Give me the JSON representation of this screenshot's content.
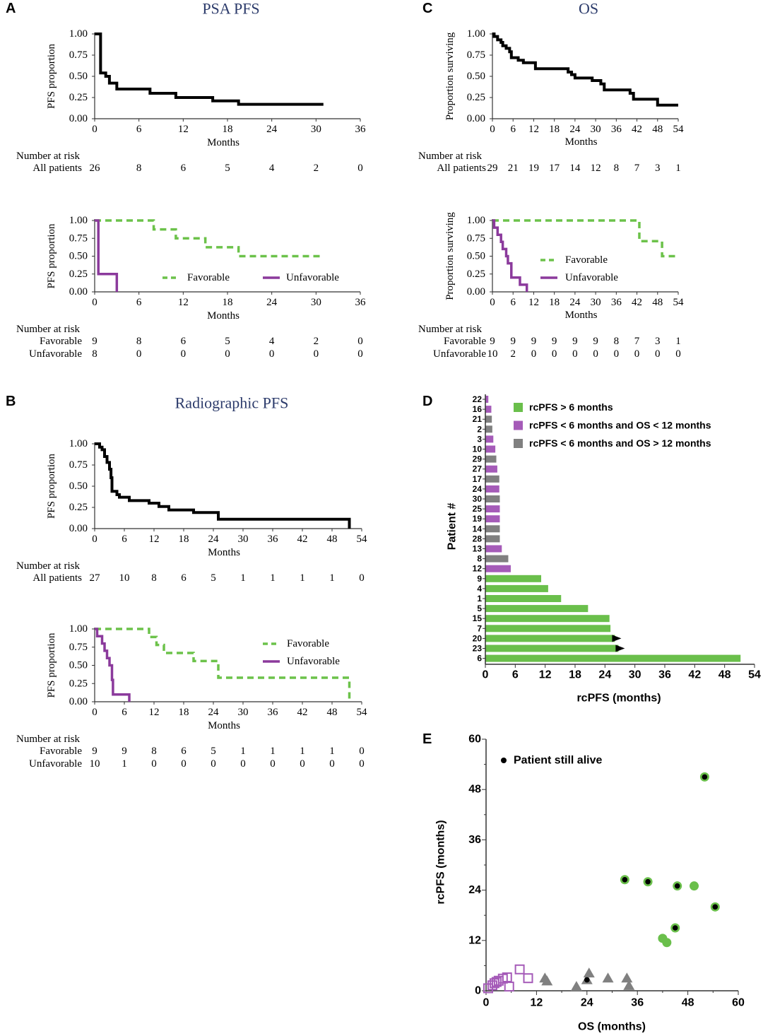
{
  "colors": {
    "black": "#000000",
    "green": "#6cc24a",
    "purple": "#8b3a9c",
    "purple_light": "#a55bb8",
    "gray": "#808080",
    "title": "#2c3b6b"
  },
  "chart_data": [
    {
      "type": "line",
      "panel": "A",
      "title": "PSA PFS",
      "xlabel": "Months",
      "ylabel": "PFS proportion",
      "xlim": [
        0,
        36
      ],
      "ylim": [
        0,
        1
      ],
      "xticks": [
        "0",
        "6",
        "12",
        "18",
        "24",
        "30",
        "36"
      ],
      "yticks": [
        "0.00",
        "0.25",
        "0.50",
        "0.75",
        "1.00"
      ],
      "legend": "none",
      "series": [
        {
          "color": "#000000",
          "style": "solid",
          "points": [
            [
              0,
              1
            ],
            [
              0.8,
              0.54
            ],
            [
              1.5,
              0.5
            ],
            [
              2,
              0.42
            ],
            [
              3,
              0.35
            ],
            [
              7.5,
              0.3
            ],
            [
              11,
              0.25
            ],
            [
              16,
              0.21
            ],
            [
              19.5,
              0.17
            ],
            [
              31,
              0.17
            ]
          ]
        }
      ],
      "risk_table": {
        "header": "Number at risk",
        "rows": [
          {
            "label": "All patients",
            "values": [
              "26",
              "8",
              "6",
              "5",
              "4",
              "2",
              "0"
            ]
          }
        ]
      }
    },
    {
      "type": "line",
      "panel": "",
      "title": "",
      "xlabel": "Months",
      "ylabel": "PFS proportion",
      "xlim": [
        0,
        36
      ],
      "ylim": [
        0,
        1
      ],
      "xticks": [
        "0",
        "6",
        "12",
        "18",
        "24",
        "30",
        "36"
      ],
      "yticks": [
        "0.00",
        "0.25",
        "0.50",
        "0.75",
        "1.00"
      ],
      "legend": "bottom-center",
      "series": [
        {
          "name": "Favorable",
          "color": "#6cc24a",
          "style": "dashed",
          "points": [
            [
              0,
              1
            ],
            [
              8,
              0.875
            ],
            [
              11,
              0.75
            ],
            [
              15,
              0.625
            ],
            [
              19.5,
              0.5
            ],
            [
              31,
              0.5
            ]
          ]
        },
        {
          "name": "Unfavorable",
          "color": "#8b3a9c",
          "style": "solid",
          "points": [
            [
              0,
              1
            ],
            [
              0.5,
              0.25
            ],
            [
              3,
              0
            ],
            [
              3,
              0
            ]
          ]
        }
      ],
      "risk_table": {
        "header": "Number at risk",
        "rows": [
          {
            "label": "Favorable",
            "values": [
              "9",
              "8",
              "6",
              "5",
              "4",
              "2",
              "0"
            ]
          },
          {
            "label": "Unfavorable",
            "values": [
              "8",
              "0",
              "0",
              "0",
              "0",
              "0",
              "0"
            ]
          }
        ]
      }
    },
    {
      "type": "line",
      "panel": "C",
      "title": "OS",
      "xlabel": "Months",
      "ylabel": "Proportion surviving",
      "xlim": [
        0,
        54
      ],
      "ylim": [
        0,
        1
      ],
      "xticks": [
        "0",
        "6",
        "12",
        "18",
        "24",
        "30",
        "36",
        "42",
        "48",
        "54"
      ],
      "yticks": [
        "0.00",
        "0.25",
        "0.50",
        "0.75",
        "1.00"
      ],
      "legend": "none",
      "series": [
        {
          "color": "#000000",
          "style": "solid",
          "points": [
            [
              0,
              1
            ],
            [
              0.5,
              0.97
            ],
            [
              1.5,
              0.93
            ],
            [
              2.5,
              0.9
            ],
            [
              3,
              0.86
            ],
            [
              4,
              0.83
            ],
            [
              5,
              0.79
            ],
            [
              5.5,
              0.72
            ],
            [
              7.5,
              0.69
            ],
            [
              9,
              0.66
            ],
            [
              12.5,
              0.59
            ],
            [
              22,
              0.55
            ],
            [
              23,
              0.52
            ],
            [
              24,
              0.48
            ],
            [
              29,
              0.45
            ],
            [
              31.5,
              0.41
            ],
            [
              32.5,
              0.34
            ],
            [
              40,
              0.3
            ],
            [
              41,
              0.23
            ],
            [
              48,
              0.16
            ],
            [
              54,
              0.16
            ]
          ]
        }
      ],
      "risk_table": {
        "header": "Number at risk",
        "rows": [
          {
            "label": "All patients",
            "values": [
              "29",
              "21",
              "19",
              "17",
              "14",
              "12",
              "8",
              "7",
              "3",
              "1"
            ]
          }
        ]
      }
    },
    {
      "type": "line",
      "panel": "",
      "title": "",
      "xlabel": "Months",
      "ylabel": "Proportion surviving",
      "xlim": [
        0,
        54
      ],
      "ylim": [
        0,
        1
      ],
      "xticks": [
        "0",
        "6",
        "12",
        "18",
        "24",
        "30",
        "36",
        "42",
        "48",
        "54"
      ],
      "yticks": [
        "0.00",
        "0.25",
        "0.50",
        "0.75",
        "1.00"
      ],
      "legend": "center-right",
      "series": [
        {
          "name": "Favorable",
          "color": "#6cc24a",
          "style": "dashed",
          "points": [
            [
              0,
              1
            ],
            [
              42.7,
              0.71
            ],
            [
              49.3,
              0.5
            ],
            [
              54,
              0.5
            ]
          ]
        },
        {
          "name": "Unfavorable",
          "color": "#8b3a9c",
          "style": "solid",
          "points": [
            [
              0,
              1
            ],
            [
              0.5,
              0.9
            ],
            [
              1.5,
              0.8
            ],
            [
              2.5,
              0.7
            ],
            [
              3,
              0.6
            ],
            [
              4,
              0.5
            ],
            [
              4.5,
              0.4
            ],
            [
              5.5,
              0.2
            ],
            [
              8,
              0.1
            ],
            [
              10,
              0
            ],
            [
              10,
              0
            ]
          ]
        }
      ],
      "risk_table": {
        "header": "Number at risk",
        "rows": [
          {
            "label": "Favorable",
            "values": [
              "9",
              "9",
              "9",
              "9",
              "9",
              "9",
              "8",
              "7",
              "3",
              "1"
            ]
          },
          {
            "label": "Unfavorable",
            "values": [
              "10",
              "2",
              "0",
              "0",
              "0",
              "0",
              "0",
              "0",
              "0",
              "0"
            ]
          }
        ]
      }
    },
    {
      "type": "line",
      "panel": "B",
      "title": "Radiographic PFS",
      "xlabel": "Months",
      "ylabel": "PFS proportion",
      "xlim": [
        0,
        54
      ],
      "ylim": [
        0,
        1
      ],
      "xticks": [
        "0",
        "6",
        "12",
        "18",
        "24",
        "30",
        "36",
        "42",
        "48",
        "54"
      ],
      "yticks": [
        "0.00",
        "0.25",
        "0.50",
        "0.75",
        "1.00"
      ],
      "legend": "none",
      "series": [
        {
          "color": "#000000",
          "style": "solid",
          "points": [
            [
              0,
              1
            ],
            [
              1,
              0.96
            ],
            [
              1.5,
              0.93
            ],
            [
              2,
              0.85
            ],
            [
              2.5,
              0.78
            ],
            [
              3,
              0.7
            ],
            [
              3.3,
              0.6
            ],
            [
              3.5,
              0.44
            ],
            [
              4.5,
              0.4
            ],
            [
              5,
              0.37
            ],
            [
              7,
              0.33
            ],
            [
              11,
              0.3
            ],
            [
              13,
              0.26
            ],
            [
              15,
              0.22
            ],
            [
              20,
              0.19
            ],
            [
              25,
              0.11
            ],
            [
              51.5,
              0
            ],
            [
              51.5,
              0
            ]
          ]
        }
      ],
      "risk_table": {
        "header": "Number at risk",
        "rows": [
          {
            "label": "All patients",
            "values": [
              "27",
              "10",
              "8",
              "6",
              "5",
              "1",
              "1",
              "1",
              "1",
              "0"
            ]
          }
        ]
      }
    },
    {
      "type": "line",
      "panel": "",
      "title": "",
      "xlabel": "Months",
      "ylabel": "PFS proportion",
      "xlim": [
        0,
        54
      ],
      "ylim": [
        0,
        1
      ],
      "xticks": [
        "0",
        "6",
        "12",
        "18",
        "24",
        "30",
        "36",
        "42",
        "48",
        "54"
      ],
      "yticks": [
        "0.00",
        "0.25",
        "0.50",
        "0.75",
        "1.00"
      ],
      "legend": "top-right",
      "series": [
        {
          "name": "Favorable",
          "color": "#6cc24a",
          "style": "dashed",
          "points": [
            [
              0,
              1
            ],
            [
              11,
              0.89
            ],
            [
              12.5,
              0.78
            ],
            [
              14,
              0.67
            ],
            [
              20,
              0.56
            ],
            [
              25,
              0.33
            ],
            [
              51.5,
              0
            ],
            [
              51.5,
              0
            ]
          ]
        },
        {
          "name": "Unfavorable",
          "color": "#8b3a9c",
          "style": "solid",
          "points": [
            [
              0,
              1
            ],
            [
              0.5,
              0.9
            ],
            [
              1.5,
              0.8
            ],
            [
              2,
              0.7
            ],
            [
              2.5,
              0.6
            ],
            [
              3,
              0.5
            ],
            [
              3.5,
              0.3
            ],
            [
              3.7,
              0.1
            ],
            [
              7,
              0
            ],
            [
              7,
              0
            ]
          ]
        }
      ],
      "risk_table": {
        "header": "Number at risk",
        "rows": [
          {
            "label": "Favorable",
            "values": [
              "9",
              "9",
              "8",
              "6",
              "5",
              "1",
              "1",
              "1",
              "1",
              "0"
            ]
          },
          {
            "label": "Unfavorable",
            "values": [
              "10",
              "1",
              "0",
              "0",
              "0",
              "0",
              "0",
              "0",
              "0",
              "0"
            ]
          }
        ]
      }
    },
    {
      "type": "bar",
      "orientation": "horizontal",
      "panel": "D",
      "title": "",
      "xlabel": "rcPFS  (months)",
      "ylabel": "Patient #",
      "xlim": [
        0,
        54
      ],
      "xticks": [
        "0",
        "6",
        "12",
        "18",
        "24",
        "30",
        "36",
        "42",
        "48",
        "54"
      ],
      "legend": "top-right",
      "legend_entries": [
        {
          "label": "rcPFS > 6 months",
          "color": "#6abf4b"
        },
        {
          "label": "rcPFS < 6 months and OS < 12 months",
          "color": "#a55bb8"
        },
        {
          "label": "rcPFS < 6 months and OS > 12 months",
          "color": "#808080"
        }
      ],
      "categories": [
        "22",
        "16",
        "21",
        "2",
        "3",
        "10",
        "29",
        "27",
        "17",
        "24",
        "30",
        "25",
        "19",
        "14",
        "28",
        "13",
        "8",
        "12",
        "9",
        "4",
        "1",
        "5",
        "15",
        "7",
        "20",
        "23",
        "6"
      ],
      "values": [
        0.6,
        1.2,
        1.3,
        1.4,
        1.6,
        2.0,
        2.2,
        2.4,
        2.8,
        2.8,
        2.9,
        2.9,
        2.9,
        2.9,
        2.9,
        3.3,
        4.6,
        5.1,
        11.2,
        12.6,
        15.2,
        20.6,
        24.9,
        25.1,
        26.0,
        26.7,
        51.2
      ],
      "groups": [
        1,
        1,
        2,
        2,
        1,
        1,
        2,
        1,
        2,
        1,
        2,
        1,
        1,
        2,
        2,
        1,
        2,
        1,
        0,
        0,
        0,
        0,
        0,
        0,
        0,
        0,
        0
      ],
      "ongoing": [
        "20",
        "23"
      ]
    },
    {
      "type": "scatter",
      "panel": "E",
      "title": "",
      "xlabel": "OS (months)",
      "ylabel": "rcPFS (months)",
      "xlim": [
        0,
        60
      ],
      "ylim": [
        0,
        60
      ],
      "xticks": [
        "0",
        "12",
        "24",
        "36",
        "48",
        "60"
      ],
      "yticks": [
        "0",
        "12",
        "24",
        "36",
        "48",
        "60"
      ],
      "legend": "top-left",
      "legend_label": "Patient still alive",
      "series": [
        {
          "group": "rcPFS > 6 months",
          "marker": "circle",
          "color": "#6abf4b",
          "points": [
            [
              52,
              51,
              true
            ],
            [
              33,
              26.5,
              true
            ],
            [
              38.5,
              26,
              true
            ],
            [
              45.5,
              25,
              true
            ],
            [
              49.5,
              25,
              false
            ],
            [
              54.5,
              20,
              true
            ],
            [
              45,
              15,
              true
            ],
            [
              42,
              12.5,
              false
            ],
            [
              43,
              11.5,
              false
            ]
          ]
        },
        {
          "group": "rcPFS < 6 months and OS < 12 months",
          "marker": "open-square",
          "color": "#a55bb8",
          "points": [
            [
              0.5,
              0.6,
              false
            ],
            [
              1.5,
              1.3,
              false
            ],
            [
              2,
              1.8,
              false
            ],
            [
              2.5,
              2.1,
              false
            ],
            [
              3,
              2.4,
              false
            ],
            [
              4,
              2.9,
              false
            ],
            [
              5,
              3.2,
              false
            ],
            [
              5.5,
              1,
              false
            ],
            [
              8,
              5.1,
              false
            ],
            [
              10,
              3,
              false
            ]
          ]
        },
        {
          "group": "rcPFS < 6 months and OS > 12 months",
          "marker": "triangle",
          "color": "#808080",
          "points": [
            [
              14,
              3,
              false
            ],
            [
              14.5,
              2.3,
              false
            ],
            [
              21.5,
              1,
              false
            ],
            [
              24.5,
              4.2,
              false
            ],
            [
              24,
              2.6,
              true
            ],
            [
              29,
              3,
              false
            ],
            [
              33.5,
              3,
              false
            ],
            [
              34,
              1.2,
              false
            ]
          ]
        }
      ]
    }
  ]
}
